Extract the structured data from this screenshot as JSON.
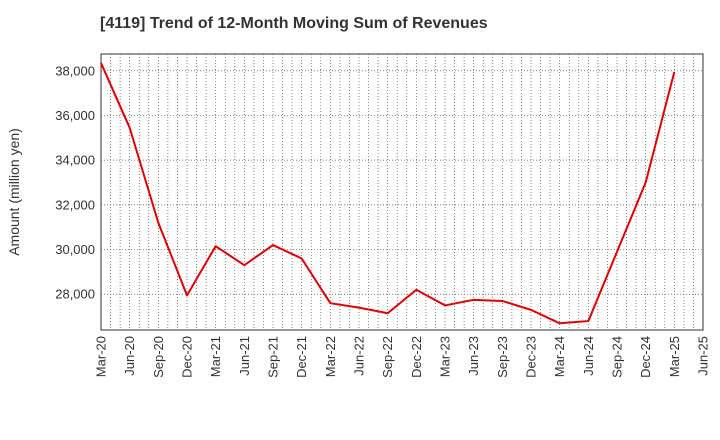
{
  "chart_data": {
    "type": "line",
    "title": "[4119]  Trend of 12-Month Moving Sum of Revenues",
    "xlabel": "",
    "ylabel": "Amount (million yen)",
    "x_ticks": [
      "Mar-20",
      "Jun-20",
      "Sep-20",
      "Dec-20",
      "Mar-21",
      "Jun-21",
      "Sep-21",
      "Dec-21",
      "Mar-22",
      "Jun-22",
      "Sep-22",
      "Dec-22",
      "Mar-23",
      "Jun-23",
      "Sep-23",
      "Dec-23",
      "Mar-24",
      "Jun-24",
      "Sep-24",
      "Dec-24",
      "Mar-25",
      "Jun-25"
    ],
    "y_ticks": [
      28000,
      30000,
      32000,
      34000,
      36000,
      38000
    ],
    "y_tick_labels": [
      "28,000",
      "30,000",
      "32,000",
      "34,000",
      "36,000",
      "38,000"
    ],
    "ylim": [
      26400,
      38750
    ],
    "grid": true,
    "series": [
      {
        "color": "#e60000",
        "x": [
          "Mar-20",
          "Jun-20",
          "Sep-20",
          "Dec-20",
          "Mar-21",
          "Jun-21",
          "Sep-21",
          "Dec-21",
          "Mar-22",
          "Jun-22",
          "Sep-22",
          "Dec-22",
          "Mar-23",
          "Jun-23",
          "Sep-23",
          "Dec-23",
          "Mar-24",
          "Jun-24",
          "Sep-24",
          "Dec-24",
          "Mar-25"
        ],
        "values": [
          38350,
          35450,
          31200,
          27950,
          30150,
          29300,
          30200,
          29600,
          27600,
          27400,
          27150,
          28200,
          27500,
          27750,
          27700,
          27300,
          26700,
          26800,
          29900,
          33000,
          37950
        ]
      }
    ]
  }
}
